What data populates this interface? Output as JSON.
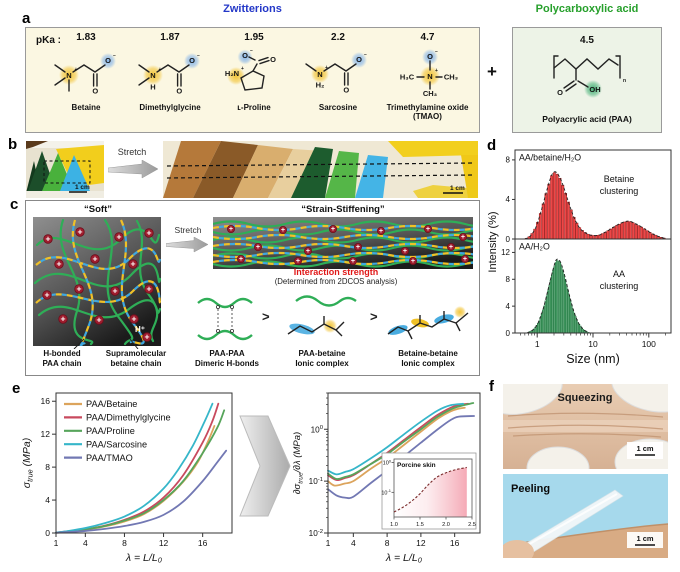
{
  "panels": {
    "a": "a",
    "b": "b",
    "c": "c",
    "d": "d",
    "e": "e",
    "f": "f"
  },
  "panel_a": {
    "group_left_title": "Zwitterions",
    "group_right_title": "Polycarboxylic acid",
    "pka_label": "pKa :",
    "plus": "+",
    "molecules": [
      {
        "pka": "1.83",
        "name": "Betaine"
      },
      {
        "pka": "1.87",
        "name": "Dimethylglycine"
      },
      {
        "pka": "1.95",
        "name": "ʟ-Proline"
      },
      {
        "pka": "2.2",
        "name": "Sarcosine"
      },
      {
        "pka": "4.7",
        "name": "Trimethylamine oxide (TMAO)"
      }
    ],
    "paa": {
      "pka": "4.5",
      "name": "Polyacrylic acid (PAA)"
    },
    "colors": {
      "zwitterion_title": "#2438c8",
      "acid_title": "#27a02c",
      "cation_glow": "#f2c230",
      "anion_glow": "#7fb0e8",
      "acid_glow": "#3fae72"
    }
  },
  "panel_b": {
    "stretch_label": "Stretch",
    "scale_label": "1 cm"
  },
  "panel_c": {
    "soft_title": "“Soft”",
    "stiffening_title": "“Strain-Stiffening”",
    "stretch_label": "Stretch",
    "h_plus": "H⁺",
    "chain_labels": [
      {
        "line1": "H-bonded",
        "line2": "PAA chain"
      },
      {
        "line1": "Supramolecular",
        "line2": "betaine chain"
      }
    ],
    "interaction_title": "Interaction strength",
    "interaction_subtitle": "(Determined from 2DCOS analysis)",
    "interaction_color": "#e01818",
    "greater_than": ">",
    "complexes": [
      {
        "line1": "PAA-PAA",
        "line2": "Dimeric H-bonds"
      },
      {
        "line1": "PAA-betaine",
        "line2": "Ionic complex"
      },
      {
        "line1": "Betaine-betaine",
        "line2": "Ionic complex"
      }
    ]
  },
  "panel_f": {
    "squeezing_label": "Squeezing",
    "peeling_label": "Peeling",
    "scale_label": "1 cm"
  },
  "chart_data": [
    {
      "id": "dls",
      "type": "area",
      "xscale": "log",
      "xlabel": "Size (nm)",
      "ylabel": "Intensity (%)",
      "xlim": [
        0.4,
        250
      ],
      "xticks": [
        1,
        10,
        100
      ],
      "subplots": [
        {
          "label": "AA/betaine/H₂O",
          "annotation": [
            "Betaine",
            "clustering"
          ],
          "color": "#ee4747",
          "edge": "#9c1c1c",
          "ylim": [
            0,
            9
          ],
          "yticks": [
            0,
            4,
            8
          ],
          "points": [
            [
              0.6,
              0
            ],
            [
              0.75,
              0.3
            ],
            [
              0.95,
              1.2
            ],
            [
              1.2,
              3.0
            ],
            [
              1.5,
              5.0
            ],
            [
              1.8,
              6.4
            ],
            [
              2.1,
              6.8
            ],
            [
              2.5,
              6.3
            ],
            [
              3.0,
              5.2
            ],
            [
              3.8,
              3.4
            ],
            [
              4.8,
              1.9
            ],
            [
              6,
              1.0
            ],
            [
              8,
              0.5
            ],
            [
              10,
              0.35
            ],
            [
              13,
              0.4
            ],
            [
              18,
              0.8
            ],
            [
              25,
              1.3
            ],
            [
              35,
              1.7
            ],
            [
              45,
              1.8
            ],
            [
              60,
              1.5
            ],
            [
              80,
              1.1
            ],
            [
              110,
              0.6
            ],
            [
              150,
              0.25
            ],
            [
              200,
              0.05
            ]
          ]
        },
        {
          "label": "AA/H₂O",
          "annotation": [
            "AA",
            "clustering"
          ],
          "color": "#63c883",
          "edge": "#237a43",
          "ylim": [
            0,
            14
          ],
          "yticks": [
            0,
            4,
            8,
            12
          ],
          "points": [
            [
              0.65,
              0
            ],
            [
              0.85,
              0.5
            ],
            [
              1.05,
              1.6
            ],
            [
              1.3,
              3.8
            ],
            [
              1.6,
              6.8
            ],
            [
              1.9,
              9.3
            ],
            [
              2.2,
              10.9
            ],
            [
              2.6,
              10.6
            ],
            [
              3.1,
              8.6
            ],
            [
              3.7,
              5.9
            ],
            [
              4.5,
              3.3
            ],
            [
              5.5,
              1.5
            ],
            [
              6.8,
              0.5
            ],
            [
              8.2,
              0.1
            ],
            [
              9,
              0
            ]
          ]
        }
      ]
    },
    {
      "id": "stress",
      "type": "line",
      "xlabel": "λ = L/L₀",
      "ylabel_parts": [
        {
          "t": "σ",
          "s": 0
        },
        {
          "t": "true",
          "s": 1
        },
        {
          "t": " (MPa)",
          "s": 0
        }
      ],
      "xlim": [
        1,
        19
      ],
      "ylim": [
        0,
        17
      ],
      "xticks": [
        1,
        4,
        8,
        12,
        16
      ],
      "yticks": [
        0,
        4,
        8,
        12,
        16
      ],
      "series": [
        {
          "name": "PAA/Betaine",
          "color": "#dca45c",
          "points": [
            [
              1,
              0.05
            ],
            [
              2,
              0.15
            ],
            [
              4,
              0.4
            ],
            [
              6,
              0.8
            ],
            [
              8,
              1.4
            ],
            [
              10,
              2.3
            ],
            [
              12,
              3.9
            ],
            [
              14,
              6.2
            ],
            [
              15.5,
              8.6
            ],
            [
              16.5,
              11.0
            ],
            [
              17.2,
              13.0
            ]
          ]
        },
        {
          "name": "PAA/Dimethylglycine",
          "color": "#c84a5e",
          "points": [
            [
              1,
              0.05
            ],
            [
              2,
              0.18
            ],
            [
              4,
              0.45
            ],
            [
              6,
              0.9
            ],
            [
              8,
              1.6
            ],
            [
              10,
              2.6
            ],
            [
              12,
              4.3
            ],
            [
              14,
              7.0
            ],
            [
              16,
              11.0
            ],
            [
              17,
              13.6
            ],
            [
              17.6,
              15.7
            ]
          ]
        },
        {
          "name": "PAA/Proline",
          "color": "#57a55b",
          "points": [
            [
              1,
              0.05
            ],
            [
              2,
              0.16
            ],
            [
              4,
              0.45
            ],
            [
              6,
              0.85
            ],
            [
              8,
              1.5
            ],
            [
              10,
              2.4
            ],
            [
              12,
              4.0
            ],
            [
              14,
              6.3
            ],
            [
              16,
              9.7
            ],
            [
              17.5,
              12.8
            ],
            [
              18.2,
              14.9
            ]
          ]
        },
        {
          "name": "PAA/Sarcosine",
          "color": "#36b6c9",
          "points": [
            [
              1,
              0.05
            ],
            [
              2,
              0.2
            ],
            [
              4,
              0.6
            ],
            [
              6,
              1.2
            ],
            [
              8,
              2.0
            ],
            [
              10,
              3.3
            ],
            [
              12,
              5.4
            ],
            [
              13.5,
              7.7
            ],
            [
              15,
              10.6
            ],
            [
              16.3,
              13.8
            ],
            [
              17,
              15.7
            ]
          ]
        },
        {
          "name": "PAA/TMAO",
          "color": "#7278b3",
          "points": [
            [
              1,
              0.02
            ],
            [
              2,
              0.1
            ],
            [
              4,
              0.25
            ],
            [
              6,
              0.5
            ],
            [
              8,
              0.85
            ],
            [
              10,
              1.35
            ],
            [
              12,
              2.2
            ],
            [
              14,
              3.8
            ],
            [
              16,
              6.3
            ],
            [
              17.5,
              8.6
            ],
            [
              18.4,
              10.0
            ]
          ]
        }
      ]
    },
    {
      "id": "derivative",
      "type": "line",
      "yscale": "log",
      "xlabel": "λ = L/L₀",
      "ylabel_parts": [
        {
          "t": "∂σ",
          "s": 0
        },
        {
          "t": "true",
          "s": 1
        },
        {
          "t": "/∂λ (MPa)",
          "s": 0
        }
      ],
      "xlim": [
        1,
        19
      ],
      "ylim": [
        0.01,
        5
      ],
      "xticks": [
        1,
        4,
        8,
        12,
        16
      ],
      "ytick_exponents": [
        0,
        -1,
        -2
      ],
      "series": [
        {
          "name": "PAA/Betaine",
          "color": "#dca45c",
          "points": [
            [
              1,
              0.1
            ],
            [
              1.8,
              0.082
            ],
            [
              3,
              0.09
            ],
            [
              4,
              0.1
            ],
            [
              6,
              0.17
            ],
            [
              8,
              0.28
            ],
            [
              10,
              0.5
            ],
            [
              12,
              0.9
            ],
            [
              14,
              1.6
            ],
            [
              15.5,
              2.2
            ],
            [
              16.5,
              2.5
            ],
            [
              17.2,
              2.6
            ]
          ]
        },
        {
          "name": "PAA/Dimethylglycine",
          "color": "#c84a5e",
          "points": [
            [
              1,
              0.13
            ],
            [
              2,
              0.105
            ],
            [
              3,
              0.115
            ],
            [
              4,
              0.13
            ],
            [
              6,
              0.21
            ],
            [
              8,
              0.35
            ],
            [
              10,
              0.62
            ],
            [
              12,
              1.1
            ],
            [
              14,
              1.9
            ],
            [
              16,
              2.8
            ],
            [
              17.6,
              3.1
            ]
          ]
        },
        {
          "name": "PAA/Proline",
          "color": "#57a55b",
          "points": [
            [
              1,
              0.14
            ],
            [
              2,
              0.11
            ],
            [
              3,
              0.12
            ],
            [
              4,
              0.135
            ],
            [
              6,
              0.21
            ],
            [
              8,
              0.33
            ],
            [
              10,
              0.58
            ],
            [
              12,
              1.0
            ],
            [
              14,
              1.75
            ],
            [
              16,
              2.6
            ],
            [
              18.2,
              3.2
            ]
          ]
        },
        {
          "name": "PAA/Sarcosine",
          "color": "#36b6c9",
          "points": [
            [
              1,
              0.16
            ],
            [
              2,
              0.135
            ],
            [
              3,
              0.15
            ],
            [
              4,
              0.17
            ],
            [
              6,
              0.27
            ],
            [
              8,
              0.45
            ],
            [
              10,
              0.8
            ],
            [
              12,
              1.4
            ],
            [
              14,
              2.3
            ],
            [
              15.5,
              2.9
            ],
            [
              17,
              3.1
            ]
          ]
        },
        {
          "name": "PAA/TMAO",
          "color": "#7278b3",
          "points": [
            [
              1,
              0.07
            ],
            [
              2,
              0.053
            ],
            [
              3,
              0.048
            ],
            [
              4,
              0.05
            ],
            [
              6,
              0.09
            ],
            [
              8,
              0.16
            ],
            [
              10,
              0.3
            ],
            [
              12,
              0.55
            ],
            [
              14,
              1.0
            ],
            [
              15.5,
              1.5
            ],
            [
              16.5,
              1.75
            ],
            [
              18.3,
              1.8
            ]
          ]
        }
      ],
      "inset": {
        "label": "Porcine skin",
        "xlim": [
          1,
          2.5
        ],
        "ylim": [
          0.015,
          1.3
        ],
        "xticks": [
          "1.0",
          "1.5",
          "2.0",
          "2.5"
        ],
        "ytick_exponents": [
          0,
          -1
        ],
        "points": [
          [
            1.0,
            0.022
          ],
          [
            1.1,
            0.027
          ],
          [
            1.2,
            0.034
          ],
          [
            1.3,
            0.045
          ],
          [
            1.4,
            0.062
          ],
          [
            1.5,
            0.09
          ],
          [
            1.6,
            0.14
          ],
          [
            1.7,
            0.21
          ],
          [
            1.8,
            0.3
          ],
          [
            1.9,
            0.38
          ],
          [
            2.0,
            0.45
          ],
          [
            2.1,
            0.52
          ],
          [
            2.2,
            0.58
          ],
          [
            2.3,
            0.63
          ],
          [
            2.4,
            0.68
          ]
        ]
      }
    }
  ]
}
